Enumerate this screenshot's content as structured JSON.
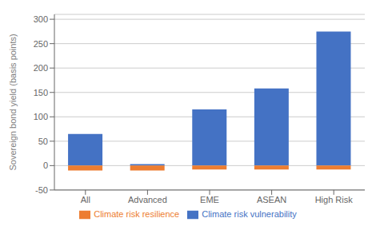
{
  "chart_data": {
    "type": "bar",
    "categories": [
      "All",
      "Advanced",
      "EME",
      "ASEAN",
      "High Risk"
    ],
    "series": [
      {
        "name": "Climate risk vulnerability",
        "color": "#4472C4",
        "values": [
          65,
          3,
          115,
          158,
          275
        ]
      },
      {
        "name": "Climate risk resilience",
        "color": "#ED7D31",
        "values": [
          -10,
          -10,
          -8,
          -8,
          -8
        ]
      }
    ],
    "ylabel": "Sovereign bond yield (basis points)",
    "ylim": [
      -50,
      310
    ],
    "yticks": [
      -50,
      0,
      50,
      100,
      150,
      200,
      250,
      300
    ],
    "grid": true,
    "legend": "bottom"
  }
}
